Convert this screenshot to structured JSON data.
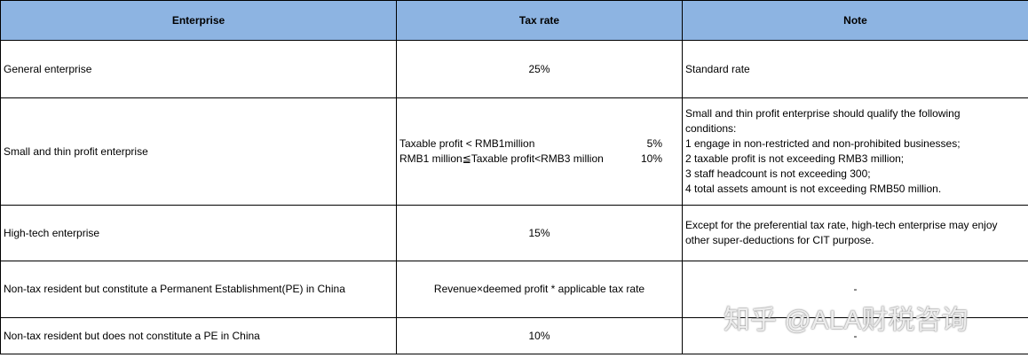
{
  "table": {
    "headers": [
      "Enterprise",
      "Tax rate",
      "Note"
    ],
    "rows": [
      {
        "enterprise": "General enterprise",
        "tax_rate": "25%",
        "note": "Standard rate"
      },
      {
        "enterprise": "Small and thin profit enterprise",
        "tax_rate": [
          {
            "condition": "Taxable profit < RMB1million",
            "rate": "5%"
          },
          {
            "condition": "RMB1 million≦Taxable profit<RMB3 million",
            "rate": "10%"
          }
        ],
        "note": [
          "Small and thin profit enterprise should qualify the following",
          "conditions:",
          "1 engage in non-restricted and non-prohibited businesses;",
          "2 taxable profit is not exceeding RMB3 million;",
          "3 staff headcount is not exceeding 300;",
          "4 total assets amount is not exceeding RMB50 million."
        ]
      },
      {
        "enterprise": "High-tech enterprise",
        "tax_rate": "15%",
        "note": [
          "Except for the preferential tax rate, high-tech enterprise may enjoy",
          "other super-deductions for CIT purpose."
        ]
      },
      {
        "enterprise": "Non-tax resident but constitute a Permanent Establishment(PE) in China",
        "tax_rate": "Revenue×deemed profit * applicable tax rate",
        "note": "-"
      },
      {
        "enterprise": "Non-tax resident but does not constitute a PE in China",
        "tax_rate": "10%",
        "note": "-"
      }
    ]
  },
  "watermark": "知乎 @ALA财税咨询"
}
